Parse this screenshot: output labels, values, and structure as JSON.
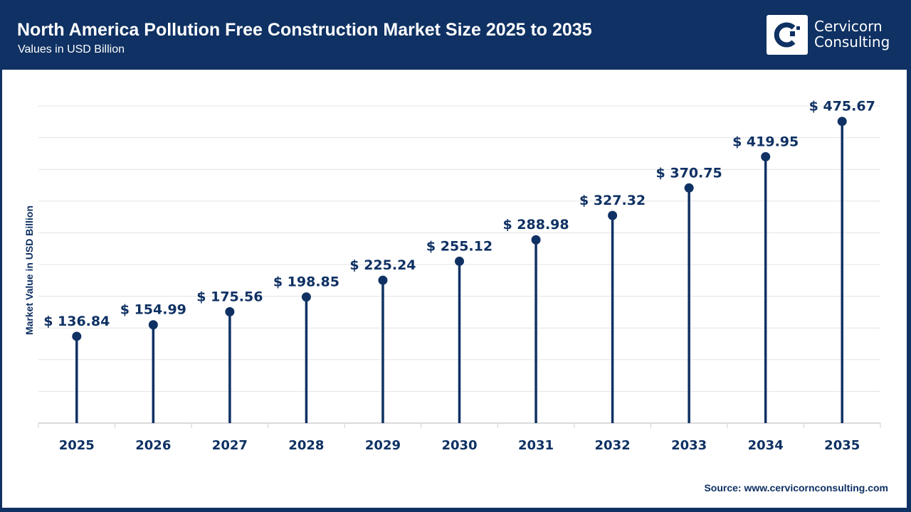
{
  "header": {
    "title": "North America Pollution Free Construction Market Size 2025 to 2035",
    "subtitle": "Values in USD Billion",
    "logo_line1": "Cervicorn",
    "logo_line2": "Consulting"
  },
  "source": "Source: www.cervicornconsulting.com",
  "colors": {
    "brand": "#0f3163",
    "grid": "#e3e3e3"
  },
  "chart_data": {
    "type": "lollipop",
    "categories": [
      "2025",
      "2026",
      "2027",
      "2028",
      "2029",
      "2030",
      "2031",
      "2032",
      "2033",
      "2034",
      "2035"
    ],
    "values": [
      136.84,
      154.99,
      175.56,
      198.85,
      225.24,
      255.12,
      288.98,
      327.32,
      370.75,
      419.95,
      475.67
    ],
    "data_labels": [
      "$ 136.84",
      "$ 154.99",
      "$ 175.56",
      "$ 198.85",
      "$ 225.24",
      "$ 255.12",
      "$ 288.98",
      "$ 327.32",
      "$ 370.75",
      "$ 419.95",
      "$ 475.67"
    ],
    "ylabel": "Market Value in USD Billion",
    "xlabel": "",
    "ylim": [
      0,
      500
    ],
    "grid": true,
    "y_ticks_shown": false
  }
}
